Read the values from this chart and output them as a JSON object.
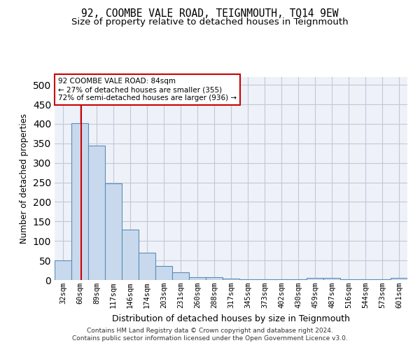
{
  "title": "92, COOMBE VALE ROAD, TEIGNMOUTH, TQ14 9EW",
  "subtitle": "Size of property relative to detached houses in Teignmouth",
  "xlabel": "Distribution of detached houses by size in Teignmouth",
  "ylabel": "Number of detached properties",
  "categories": [
    "32sqm",
    "60sqm",
    "89sqm",
    "117sqm",
    "146sqm",
    "174sqm",
    "203sqm",
    "231sqm",
    "260sqm",
    "288sqm",
    "317sqm",
    "345sqm",
    "373sqm",
    "402sqm",
    "430sqm",
    "459sqm",
    "487sqm",
    "516sqm",
    "544sqm",
    "573sqm",
    "601sqm"
  ],
  "values": [
    50,
    402,
    345,
    247,
    130,
    70,
    36,
    20,
    8,
    7,
    3,
    1,
    1,
    1,
    1,
    6,
    6,
    1,
    1,
    1,
    5
  ],
  "bar_color": "#c9d9ed",
  "bar_edge_color": "#5b8db8",
  "vline_x": 1.1,
  "vline_color": "#cc0000",
  "annotation_text": "92 COOMBE VALE ROAD: 84sqm\n← 27% of detached houses are smaller (355)\n72% of semi-detached houses are larger (936) →",
  "annotation_box_color": "#ffffff",
  "annotation_box_edge_color": "#cc0000",
  "ylim": [
    0,
    520
  ],
  "yticks": [
    0,
    50,
    100,
    150,
    200,
    250,
    300,
    350,
    400,
    450,
    500
  ],
  "grid_color": "#c0c8d8",
  "bg_color": "#eef2f8",
  "footer_line1": "Contains HM Land Registry data © Crown copyright and database right 2024.",
  "footer_line2": "Contains public sector information licensed under the Open Government Licence v3.0.",
  "title_fontsize": 10.5,
  "subtitle_fontsize": 9.5
}
